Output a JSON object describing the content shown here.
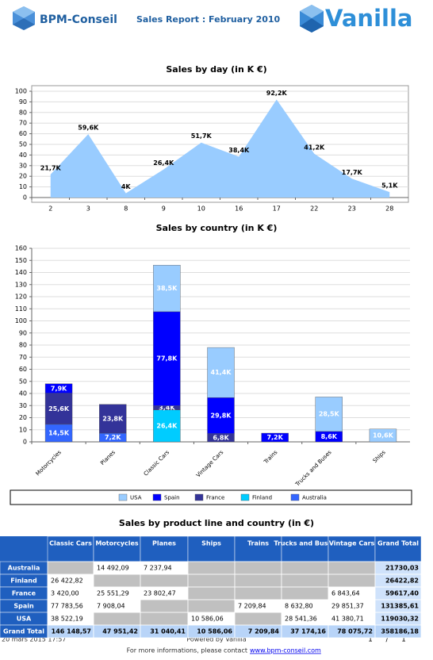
{
  "header": {
    "brand": "BPM-Conseil",
    "title": "Sales Report : February 2010",
    "product": "Vanilla"
  },
  "chart_data": [
    {
      "type": "area",
      "title": "Sales by day (in K €)",
      "categories": [
        "2",
        "3",
        "8",
        "9",
        "10",
        "16",
        "17",
        "22",
        "23",
        "28"
      ],
      "values": [
        21.7,
        59.6,
        4,
        26.4,
        51.7,
        38.4,
        92.2,
        41.2,
        17.7,
        5.1
      ],
      "value_labels": [
        "21,7K",
        "59,6K",
        "4K",
        "26,4K",
        "51,7K",
        "38,4K",
        "92,2K",
        "41,2K",
        "17,7K",
        "5,1K"
      ],
      "color": "#99ccff",
      "ylim": [
        0,
        100
      ],
      "yticks": [
        0,
        10,
        20,
        30,
        40,
        50,
        60,
        70,
        80,
        90,
        100
      ],
      "grid": true
    },
    {
      "type": "bar",
      "stacked": true,
      "title": "Sales by country (in K €)",
      "categories": [
        "Motorcycles",
        "Planes",
        "Classic Cars",
        "Vintage Cars",
        "Trains",
        "Trucks and Buses",
        "Ships"
      ],
      "series": [
        {
          "name": "USA",
          "color": "#99ccff",
          "values": [
            null,
            null,
            38.5,
            41.4,
            null,
            28.5,
            10.6
          ],
          "value_labels": [
            null,
            null,
            "38,5K",
            "41,4K",
            null,
            "28,5K",
            "10,6K"
          ]
        },
        {
          "name": "Spain",
          "color": "#0000ff",
          "values": [
            7.9,
            null,
            77.8,
            29.8,
            7.2,
            8.6,
            null
          ],
          "value_labels": [
            "7,9K",
            null,
            "77,8K",
            "29,8K",
            "7,2K",
            "8,6K",
            null
          ]
        },
        {
          "name": "France",
          "color": "#333399",
          "values": [
            25.6,
            23.8,
            3.4,
            6.8,
            null,
            null,
            null
          ],
          "value_labels": [
            "25,6K",
            "23,8K",
            "3,4K",
            "6,8K",
            null,
            null,
            null
          ]
        },
        {
          "name": "Finland",
          "color": "#00ccff",
          "values": [
            null,
            null,
            26.4,
            null,
            null,
            null,
            null
          ],
          "value_labels": [
            null,
            null,
            "26,4K",
            null,
            null,
            null,
            null
          ]
        },
        {
          "name": "Australia",
          "color": "#3366ff",
          "values": [
            14.5,
            7.2,
            null,
            null,
            null,
            null,
            null
          ],
          "value_labels": [
            "14,5K",
            "7,2K",
            null,
            null,
            null,
            null,
            null
          ]
        }
      ],
      "ylim": [
        0,
        160
      ],
      "yticks": [
        0,
        10,
        20,
        30,
        40,
        50,
        60,
        70,
        80,
        90,
        100,
        110,
        120,
        130,
        140,
        150,
        160
      ],
      "grid": true,
      "legend": "bottom"
    }
  ],
  "table": {
    "title": "Sales by product line and country (in €)",
    "columns": [
      "Classic Cars",
      "Motorcycles",
      "Planes",
      "Ships",
      "Trains",
      "Trucks and Buses",
      "Vintage Cars",
      "Grand Total"
    ],
    "rows": [
      {
        "label": "Australia",
        "cells": [
          null,
          "14 492,09",
          "7 237,94",
          null,
          null,
          null,
          null,
          "21730,03"
        ]
      },
      {
        "label": "Finland",
        "cells": [
          "26 422,82",
          null,
          null,
          null,
          null,
          null,
          null,
          "26422,82"
        ]
      },
      {
        "label": "France",
        "cells": [
          "3 420,00",
          "25 551,29",
          "23 802,47",
          null,
          null,
          null,
          "6 843,64",
          "59617,40"
        ]
      },
      {
        "label": "Spain",
        "cells": [
          "77 783,56",
          "7 908,04",
          null,
          null,
          "7 209,84",
          "8 632,80",
          "29 851,37",
          "131385,61"
        ]
      },
      {
        "label": "USA",
        "cells": [
          "38 522,19",
          null,
          null,
          "10 586,06",
          null,
          "28 541,36",
          "41 380,71",
          "119030,32"
        ]
      },
      {
        "label": "Grand Total",
        "cells": [
          "146 148,57",
          "47 951,42",
          "31 040,41",
          "10 586,06",
          "7 209,84",
          "37 174,16",
          "78 075,72",
          "358186,18"
        ]
      }
    ]
  },
  "footer": {
    "date": "20 mars 2015 17:57",
    "powered": "Powered by Vanilla",
    "page": "1",
    "sep": "/",
    "pages": "1",
    "contact": "For more informations, please contact",
    "link": "www.bpm-conseil.com"
  }
}
